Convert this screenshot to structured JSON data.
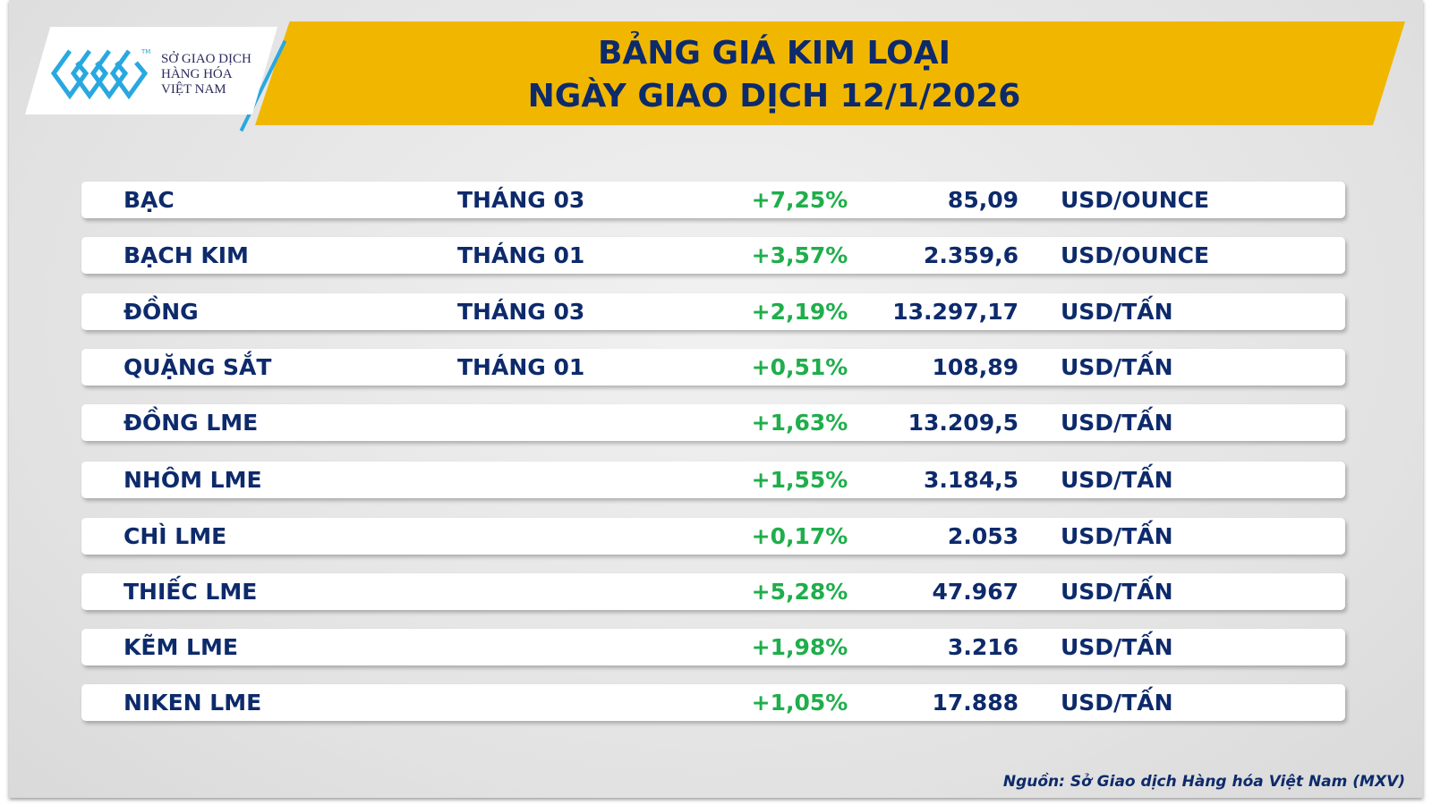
{
  "logo": {
    "lines": [
      "SỞ GIAO DỊCH",
      "HÀNG HÓA",
      "VIỆT NAM"
    ],
    "tm": "TM"
  },
  "title": {
    "line1": "BẢNG GIÁ KIM LOẠI",
    "line2": "NGÀY GIAO DỊCH 12/1/2026"
  },
  "colors": {
    "banner": "#f1b700",
    "text": "#0d2a6b",
    "positive": "#1fae4b",
    "logo_blue": "#29a8e0"
  },
  "rows": [
    {
      "name": "BẠC",
      "month": "THÁNG 03",
      "change": "+7,25%",
      "price": "85,09",
      "unit": "USD/OUNCE"
    },
    {
      "name": "BẠCH KIM",
      "month": "THÁNG 01",
      "change": "+3,57%",
      "price": "2.359,6",
      "unit": "USD/OUNCE"
    },
    {
      "name": "ĐỒNG",
      "month": "THÁNG 03",
      "change": "+2,19%",
      "price": "13.297,17",
      "unit": "USD/TẤN"
    },
    {
      "name": "QUẶNG SẮT",
      "month": "THÁNG 01",
      "change": "+0,51%",
      "price": "108,89",
      "unit": "USD/TẤN"
    },
    {
      "name": "ĐỒNG LME",
      "month": "",
      "change": "+1,63%",
      "price": "13.209,5",
      "unit": "USD/TẤN"
    },
    {
      "name": "NHÔM LME",
      "month": "",
      "change": "+1,55%",
      "price": "3.184,5",
      "unit": "USD/TẤN"
    },
    {
      "name": "CHÌ LME",
      "month": "",
      "change": "+0,17%",
      "price": "2.053",
      "unit": "USD/TẤN"
    },
    {
      "name": "THIẾC LME",
      "month": "",
      "change": "+5,28%",
      "price": "47.967",
      "unit": "USD/TẤN"
    },
    {
      "name": "KẼM LME",
      "month": "",
      "change": "+1,98%",
      "price": "3.216",
      "unit": "USD/TẤN"
    },
    {
      "name": "NIKEN LME",
      "month": "",
      "change": "+1,05%",
      "price": "17.888",
      "unit": "USD/TẤN"
    }
  ],
  "source": "Nguồn: Sở Giao dịch Hàng hóa Việt Nam (MXV)"
}
